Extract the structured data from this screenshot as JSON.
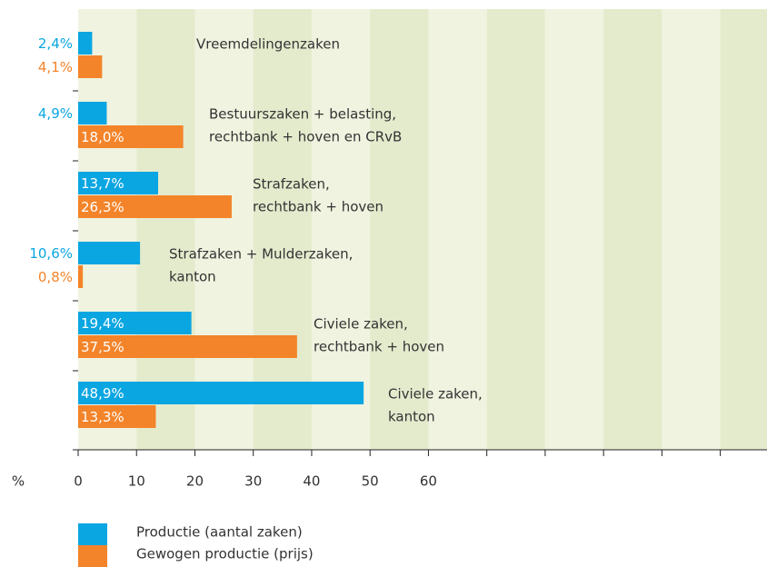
{
  "chart_data": {
    "type": "barh",
    "x_label": "%",
    "categories": [
      [
        "Vreemdelingenzaken"
      ],
      [
        "Bestuurszaken + belasting,",
        "rechtbank + hoven en CRvB"
      ],
      [
        "Strafzaken,",
        "rechtbank + hoven"
      ],
      [
        "Strafzaken + Mulderzaken,",
        "kanton"
      ],
      [
        "Civiele zaken,",
        "rechtbank + hoven"
      ],
      [
        "Civiele zaken,",
        "kanton"
      ]
    ],
    "series": [
      {
        "name": "Productie (aantal zaken)",
        "color": "#0aa6e2",
        "values": [
          2.4,
          4.9,
          13.7,
          10.6,
          19.4,
          48.9
        ],
        "value_labels": [
          "2,4%",
          "4,9%",
          "13,7%",
          "10,6%",
          "19,4%",
          "48,9%"
        ]
      },
      {
        "name": "Gewogen productie (prijs)",
        "color": "#f4842a",
        "values": [
          4.1,
          18.0,
          26.3,
          0.8,
          37.5,
          13.3
        ],
        "value_labels": [
          "4,1%",
          "18,0%",
          "26,3%",
          "0,8%",
          "37,5%",
          "13,3%"
        ]
      }
    ],
    "xlim": [
      0,
      118
    ],
    "xticks": [
      0,
      10,
      20,
      30,
      40,
      50,
      60
    ]
  }
}
